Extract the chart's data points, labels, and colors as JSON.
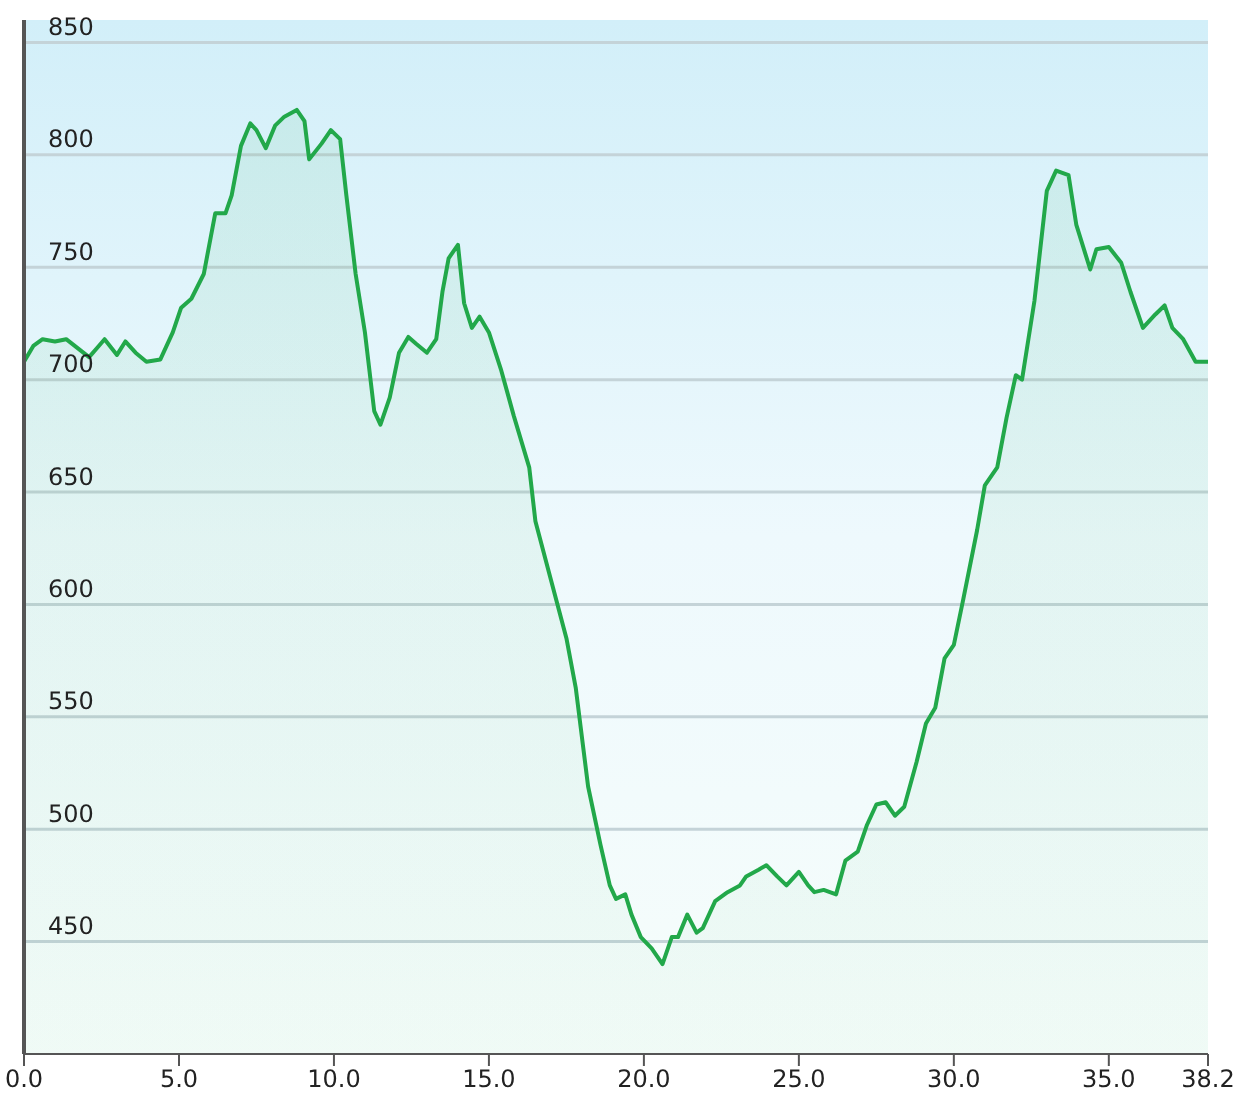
{
  "chart_data": {
    "type": "area",
    "color": "#22a84a",
    "x": [
      0,
      0.3,
      0.6,
      1.0,
      1.36,
      1.73,
      2.1,
      2.35,
      2.6,
      3.0,
      3.27,
      3.6,
      3.95,
      4.4,
      4.8,
      5.07,
      5.4,
      5.8,
      6.17,
      6.5,
      6.7,
      7.0,
      7.3,
      7.5,
      7.8,
      8.1,
      8.4,
      8.8,
      9.05,
      9.2,
      9.6,
      9.9,
      10.2,
      10.4,
      10.7,
      11.0,
      11.3,
      11.5,
      11.8,
      12.1,
      12.4,
      12.65,
      13.0,
      13.3,
      13.5,
      13.7,
      14.0,
      14.2,
      14.45,
      14.7,
      15.0,
      15.4,
      15.8,
      16.3,
      16.5,
      17.0,
      17.5,
      17.8,
      18.2,
      18.6,
      18.9,
      19.1,
      19.4,
      19.6,
      19.9,
      20.25,
      20.6,
      20.9,
      21.1,
      21.4,
      21.7,
      21.9,
      22.3,
      22.7,
      23.1,
      23.3,
      23.7,
      23.95,
      24.3,
      24.6,
      25.0,
      25.3,
      25.5,
      25.8,
      26.2,
      26.5,
      26.9,
      27.2,
      27.5,
      27.8,
      28.1,
      28.4,
      28.8,
      29.1,
      29.4,
      29.7,
      30.0,
      30.3,
      30.75,
      31.0,
      31.4,
      31.7,
      32.0,
      32.2,
      32.6,
      33.0,
      33.3,
      33.7,
      33.95,
      34.4,
      34.6,
      35.0,
      35.4,
      35.7,
      36.1,
      36.5,
      36.8,
      37.05,
      37.4,
      37.8,
      38.2
    ],
    "values": [
      708,
      715,
      718,
      717,
      718,
      714,
      710,
      714,
      718,
      711,
      717,
      712,
      708,
      709,
      721,
      732,
      736,
      747,
      774,
      774,
      782,
      804,
      814,
      811,
      803,
      813,
      817,
      820,
      815,
      798,
      805,
      811,
      807,
      782,
      747,
      721,
      686,
      680,
      692,
      712,
      719,
      716,
      712,
      718,
      739,
      754,
      760,
      734,
      723,
      728,
      721,
      704,
      684,
      661,
      637,
      611,
      585,
      563,
      519,
      493,
      475,
      469,
      471,
      462,
      452,
      447,
      440,
      452,
      452,
      462,
      454,
      456,
      468,
      472,
      475,
      479,
      482,
      484,
      479,
      475,
      481,
      475,
      472,
      473,
      471,
      486,
      490,
      502,
      511,
      512,
      506,
      510,
      530,
      547,
      554,
      576,
      582,
      602,
      633,
      653,
      661,
      683,
      702,
      700,
      735,
      784,
      793,
      791,
      769,
      749,
      758,
      759,
      752,
      739,
      723,
      729,
      733,
      723,
      718,
      708,
      708
    ],
    "xlim": [
      0,
      38.2
    ],
    "xticks": [
      {
        "value": 0,
        "label": "0.0"
      },
      {
        "value": 5,
        "label": "5.0"
      },
      {
        "value": 10,
        "label": "10.0"
      },
      {
        "value": 15,
        "label": "15.0"
      },
      {
        "value": 20,
        "label": "20.0"
      },
      {
        "value": 25,
        "label": "25.0"
      },
      {
        "value": 30,
        "label": "30.0"
      },
      {
        "value": 35,
        "label": "35.0"
      },
      38.2
    ],
    "ylim": [
      400,
      860
    ],
    "yticks": [
      450,
      500,
      550,
      600,
      650,
      700,
      750,
      800,
      850
    ],
    "grid": "y",
    "legend": false,
    "marker": "none",
    "line_style": "solid"
  }
}
